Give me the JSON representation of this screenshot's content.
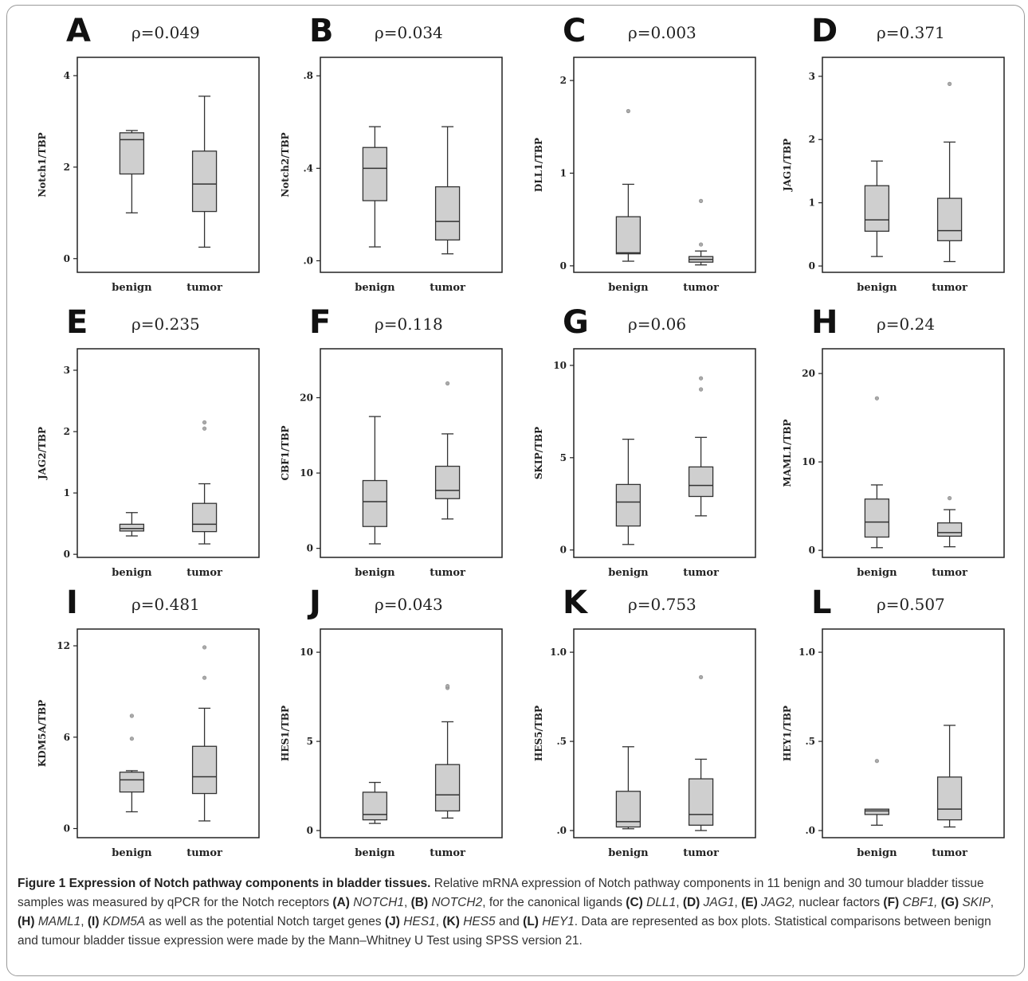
{
  "chart_data": [
    {
      "type": "box",
      "panel": "A",
      "annotation": "ρ=0.049",
      "ylabel": "Notch1/TBP",
      "ylim": [
        -0.3,
        4.4
      ],
      "yticks": [
        0,
        2,
        4
      ],
      "ytick_labels": [
        "0",
        "2",
        "4"
      ],
      "categories": [
        "benign",
        "tumor"
      ],
      "boxes": [
        {
          "whisker_low": 1.0,
          "q1": 1.85,
          "median": 2.6,
          "q3": 2.75,
          "whisker_high": 2.8,
          "outliers": []
        },
        {
          "whisker_low": 0.25,
          "q1": 1.03,
          "median": 1.63,
          "q3": 2.35,
          "whisker_high": 3.55,
          "outliers": []
        }
      ]
    },
    {
      "type": "box",
      "panel": "B",
      "annotation": "ρ=0.034",
      "ylabel": "Notch2/TBP",
      "ylim": [
        -0.05,
        0.88
      ],
      "yticks": [
        0,
        0.4,
        0.8
      ],
      "ytick_labels": [
        ".0",
        ".4",
        ".8"
      ],
      "categories": [
        "benign",
        "tumor"
      ],
      "boxes": [
        {
          "whisker_low": 0.06,
          "q1": 0.26,
          "median": 0.4,
          "q3": 0.49,
          "whisker_high": 0.58,
          "outliers": []
        },
        {
          "whisker_low": 0.03,
          "q1": 0.09,
          "median": 0.17,
          "q3": 0.32,
          "whisker_high": 0.58,
          "outliers": []
        }
      ]
    },
    {
      "type": "box",
      "panel": "C",
      "annotation": "ρ=0.003",
      "ylabel": "DLL1/TBP",
      "ylim": [
        -0.07,
        2.25
      ],
      "yticks": [
        0,
        1,
        2
      ],
      "ytick_labels": [
        "0",
        "1",
        "2"
      ],
      "categories": [
        "benign",
        "tumor"
      ],
      "boxes": [
        {
          "whisker_low": 0.05,
          "q1": 0.13,
          "median": 0.14,
          "q3": 0.53,
          "whisker_high": 0.88,
          "outliers": [
            1.67
          ]
        },
        {
          "whisker_low": 0.01,
          "q1": 0.04,
          "median": 0.07,
          "q3": 0.1,
          "whisker_high": 0.16,
          "outliers": [
            0.23,
            0.7
          ]
        }
      ]
    },
    {
      "type": "box",
      "panel": "D",
      "annotation": "ρ=0.371",
      "ylabel": "JAG1/TBP",
      "ylim": [
        -0.1,
        3.3
      ],
      "yticks": [
        0,
        1,
        2,
        3
      ],
      "ytick_labels": [
        "0",
        "1",
        "2",
        "3"
      ],
      "categories": [
        "benign",
        "tumor"
      ],
      "boxes": [
        {
          "whisker_low": 0.15,
          "q1": 0.55,
          "median": 0.73,
          "q3": 1.27,
          "whisker_high": 1.66,
          "outliers": []
        },
        {
          "whisker_low": 0.07,
          "q1": 0.4,
          "median": 0.56,
          "q3": 1.07,
          "whisker_high": 1.96,
          "outliers": [
            2.88
          ]
        }
      ]
    },
    {
      "type": "box",
      "panel": "E",
      "annotation": "ρ=0.235",
      "ylabel": "JAG2/TBP",
      "ylim": [
        -0.05,
        3.35
      ],
      "yticks": [
        0,
        1,
        2,
        3
      ],
      "ytick_labels": [
        "0",
        "1",
        "2",
        "3"
      ],
      "categories": [
        "benign",
        "tumor"
      ],
      "boxes": [
        {
          "whisker_low": 0.3,
          "q1": 0.38,
          "median": 0.42,
          "q3": 0.49,
          "whisker_high": 0.68,
          "outliers": []
        },
        {
          "whisker_low": 0.17,
          "q1": 0.37,
          "median": 0.49,
          "q3": 0.83,
          "whisker_high": 1.15,
          "outliers": [
            2.05,
            2.15
          ]
        }
      ]
    },
    {
      "type": "box",
      "panel": "F",
      "annotation": "ρ=0.118",
      "ylabel": "CBF1/TBP",
      "ylim": [
        -1.2,
        26.5
      ],
      "yticks": [
        0,
        10,
        20
      ],
      "ytick_labels": [
        "0",
        "10",
        "20"
      ],
      "categories": [
        "benign",
        "tumor"
      ],
      "boxes": [
        {
          "whisker_low": 0.6,
          "q1": 2.9,
          "median": 6.2,
          "q3": 9.0,
          "whisker_high": 17.5,
          "outliers": []
        },
        {
          "whisker_low": 3.9,
          "q1": 6.6,
          "median": 7.7,
          "q3": 10.9,
          "whisker_high": 15.2,
          "outliers": [
            21.9
          ]
        }
      ]
    },
    {
      "type": "box",
      "panel": "G",
      "annotation": "ρ=0.06",
      "ylabel": "SKIP/TBP",
      "ylim": [
        -0.4,
        10.9
      ],
      "yticks": [
        0,
        5,
        10
      ],
      "ytick_labels": [
        "0",
        "5",
        "10"
      ],
      "categories": [
        "benign",
        "tumor"
      ],
      "boxes": [
        {
          "whisker_low": 0.3,
          "q1": 1.3,
          "median": 2.6,
          "q3": 3.55,
          "whisker_high": 6.0,
          "outliers": []
        },
        {
          "whisker_low": 1.85,
          "q1": 2.9,
          "median": 3.5,
          "q3": 4.5,
          "whisker_high": 6.1,
          "outliers": [
            8.7,
            9.3
          ]
        }
      ]
    },
    {
      "type": "box",
      "panel": "H",
      "annotation": "ρ=0.24",
      "ylabel": "MAML1/TBP",
      "ylim": [
        -0.8,
        22.8
      ],
      "yticks": [
        0,
        10,
        20
      ],
      "ytick_labels": [
        "0",
        "10",
        "20"
      ],
      "categories": [
        "benign",
        "tumor"
      ],
      "boxes": [
        {
          "whisker_low": 0.3,
          "q1": 1.5,
          "median": 3.2,
          "q3": 5.8,
          "whisker_high": 7.4,
          "outliers": [
            17.2
          ]
        },
        {
          "whisker_low": 0.4,
          "q1": 1.6,
          "median": 2.0,
          "q3": 3.1,
          "whisker_high": 4.6,
          "outliers": [
            5.9
          ]
        }
      ]
    },
    {
      "type": "box",
      "panel": "I",
      "annotation": "ρ=0.481",
      "ylabel": "KDM5A/TBP",
      "ylim": [
        -0.6,
        13.1
      ],
      "yticks": [
        0,
        6,
        12
      ],
      "ytick_labels": [
        "0",
        "6",
        "12"
      ],
      "categories": [
        "benign",
        "tumor"
      ],
      "boxes": [
        {
          "whisker_low": 1.1,
          "q1": 2.4,
          "median": 3.2,
          "q3": 3.7,
          "whisker_high": 3.8,
          "outliers": [
            5.9,
            7.4
          ]
        },
        {
          "whisker_low": 0.5,
          "q1": 2.3,
          "median": 3.4,
          "q3": 5.4,
          "whisker_high": 7.9,
          "outliers": [
            9.9,
            11.9
          ]
        }
      ]
    },
    {
      "type": "box",
      "panel": "J",
      "annotation": "ρ=0.043",
      "ylabel": "HES1/TBP",
      "ylim": [
        -0.4,
        11.3
      ],
      "yticks": [
        0,
        5,
        10
      ],
      "ytick_labels": [
        "0",
        "5",
        "10"
      ],
      "categories": [
        "benign",
        "tumor"
      ],
      "boxes": [
        {
          "whisker_low": 0.4,
          "q1": 0.6,
          "median": 0.9,
          "q3": 2.15,
          "whisker_high": 2.7,
          "outliers": []
        },
        {
          "whisker_low": 0.7,
          "q1": 1.1,
          "median": 2.0,
          "q3": 3.7,
          "whisker_high": 6.1,
          "outliers": [
            8.0,
            8.1
          ]
        }
      ]
    },
    {
      "type": "box",
      "panel": "K",
      "annotation": "ρ=0.753",
      "ylabel": "HES5/TBP",
      "ylim": [
        -0.04,
        1.13
      ],
      "yticks": [
        0,
        0.5,
        1.0
      ],
      "ytick_labels": [
        ".0",
        ".5",
        "1.0"
      ],
      "categories": [
        "benign",
        "tumor"
      ],
      "boxes": [
        {
          "whisker_low": 0.01,
          "q1": 0.02,
          "median": 0.05,
          "q3": 0.22,
          "whisker_high": 0.47,
          "outliers": []
        },
        {
          "whisker_low": 0.0,
          "q1": 0.03,
          "median": 0.09,
          "q3": 0.29,
          "whisker_high": 0.4,
          "outliers": [
            0.86
          ]
        }
      ]
    },
    {
      "type": "box",
      "panel": "L",
      "annotation": "ρ=0.507",
      "ylabel": "HEY1/TBP",
      "ylim": [
        -0.04,
        1.13
      ],
      "yticks": [
        0,
        0.5,
        1.0
      ],
      "ytick_labels": [
        ".0",
        ".5",
        "1.0"
      ],
      "categories": [
        "benign",
        "tumor"
      ],
      "boxes": [
        {
          "whisker_low": 0.03,
          "q1": 0.09,
          "median": 0.11,
          "q3": 0.12,
          "whisker_high": 0.12,
          "outliers": [
            0.39
          ]
        },
        {
          "whisker_low": 0.02,
          "q1": 0.06,
          "median": 0.12,
          "q3": 0.3,
          "whisker_high": 0.59,
          "outliers": []
        }
      ]
    }
  ],
  "colors": {
    "box_fill": "#cfcfcf",
    "line": "#333333",
    "outlier": "#aaaaaa",
    "frame": "#9a9a9a"
  },
  "caption": {
    "title": "Figure 1 Expression of Notch pathway components in bladder tissues.",
    "segments": [
      {
        "t": " Relative mRNA expression of Notch pathway components in 11 benign and 30 tumour bladder tissue samples was measured by qPCR for the Notch receptors ",
        "s": "n"
      },
      {
        "t": "(A)",
        "s": "b"
      },
      {
        "t": " ",
        "s": "n"
      },
      {
        "t": "NOTCH1",
        "s": "i"
      },
      {
        "t": ", ",
        "s": "n"
      },
      {
        "t": "(B)",
        "s": "b"
      },
      {
        "t": " ",
        "s": "n"
      },
      {
        "t": "NOTCH2",
        "s": "i"
      },
      {
        "t": ", for the canonical ligands ",
        "s": "n"
      },
      {
        "t": "(C)",
        "s": "b"
      },
      {
        "t": " ",
        "s": "n"
      },
      {
        "t": "DLL1",
        "s": "i"
      },
      {
        "t": ", ",
        "s": "n"
      },
      {
        "t": "(D)",
        "s": "b"
      },
      {
        "t": " ",
        "s": "n"
      },
      {
        "t": "JAG1",
        "s": "i"
      },
      {
        "t": ", ",
        "s": "n"
      },
      {
        "t": "(E)",
        "s": "b"
      },
      {
        "t": " ",
        "s": "n"
      },
      {
        "t": "JAG2,",
        "s": "i"
      },
      {
        "t": " nuclear factors ",
        "s": "n"
      },
      {
        "t": "(F)",
        "s": "b"
      },
      {
        "t": " ",
        "s": "n"
      },
      {
        "t": "CBF1,",
        "s": "i"
      },
      {
        "t": " ",
        "s": "n"
      },
      {
        "t": "(G)",
        "s": "b"
      },
      {
        "t": " ",
        "s": "n"
      },
      {
        "t": "SKIP",
        "s": "i"
      },
      {
        "t": ", ",
        "s": "n"
      },
      {
        "t": "(H)",
        "s": "b"
      },
      {
        "t": " ",
        "s": "n"
      },
      {
        "t": "MAML1",
        "s": "i"
      },
      {
        "t": ", ",
        "s": "n"
      },
      {
        "t": "(I)",
        "s": "b"
      },
      {
        "t": " ",
        "s": "n"
      },
      {
        "t": "KDM5A",
        "s": "i"
      },
      {
        "t": " as well as the potential Notch target genes ",
        "s": "n"
      },
      {
        "t": "(J)",
        "s": "b"
      },
      {
        "t": " ",
        "s": "n"
      },
      {
        "t": "HES1",
        "s": "i"
      },
      {
        "t": ", ",
        "s": "n"
      },
      {
        "t": "(K)",
        "s": "b"
      },
      {
        "t": " ",
        "s": "n"
      },
      {
        "t": "HES5",
        "s": "i"
      },
      {
        "t": " and ",
        "s": "n"
      },
      {
        "t": "(L)",
        "s": "b"
      },
      {
        "t": " ",
        "s": "n"
      },
      {
        "t": "HEY1",
        "s": "i"
      },
      {
        "t": ". Data are represented as box plots. Statistical comparisons between benign and tumour bladder tissue expression were made by the Mann–Whitney U Test using SPSS version 21.",
        "s": "n"
      }
    ]
  }
}
